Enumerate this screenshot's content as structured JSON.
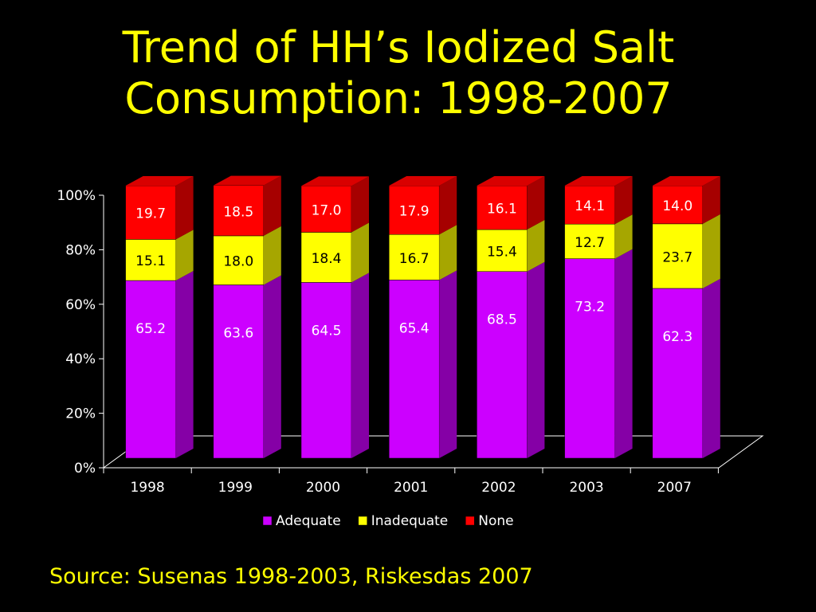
{
  "slide": {
    "title_line1": "Trend of HH’s Iodized Salt",
    "title_line2": "Consumption: 1998-2007",
    "source": "Source: Susenas 1998-2003, Riskesdas 2007"
  },
  "colors": {
    "background": "#000000",
    "title": "#ffff00",
    "adequate": "#cc00ff",
    "inadequate": "#ffff00",
    "none": "#ff0000",
    "axis_text": "#ffffff"
  },
  "chart_data": {
    "type": "bar",
    "stacked": true,
    "percent_scale": true,
    "categories": [
      "1998",
      "1999",
      "2000",
      "2001",
      "2002",
      "2003",
      "2007"
    ],
    "series": [
      {
        "name": "Adequate",
        "values": [
          65.2,
          63.6,
          64.5,
          65.4,
          68.5,
          73.2,
          62.3
        ],
        "labels": [
          "65.2",
          "63.6",
          "64.5",
          "65.4",
          "68.5",
          "73.2",
          "62.3"
        ]
      },
      {
        "name": "Inadequate",
        "values": [
          15.1,
          18.0,
          18.4,
          16.7,
          15.4,
          12.7,
          23.7
        ],
        "labels": [
          "15.1",
          "18.0",
          "18.4",
          "16.7",
          "15.4",
          "12.7",
          "23.7"
        ]
      },
      {
        "name": "None",
        "values": [
          19.7,
          18.5,
          17.0,
          17.9,
          16.1,
          14.1,
          14.0
        ],
        "labels": [
          "19.7",
          "18.5",
          "17.0",
          "17.9",
          "16.1",
          "14.1",
          "14.0"
        ]
      }
    ],
    "y_ticks": [
      "0%",
      "20%",
      "40%",
      "60%",
      "80%",
      "100%"
    ],
    "ylim": [
      0,
      100
    ],
    "legend_position": "bottom",
    "grid": false
  }
}
